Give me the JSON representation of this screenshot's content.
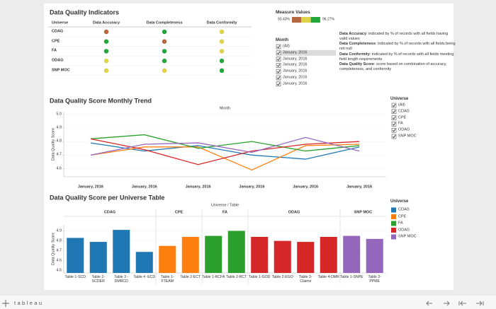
{
  "indicators": {
    "title": "Data Quality Indicators",
    "columns": [
      "Universe",
      "Data Accuracy",
      "Data Completeness",
      "Data Conformity"
    ],
    "rows": [
      {
        "universe": "CDAG",
        "colors": [
          "#b5673f",
          "#23a53c",
          "#ddd24a"
        ]
      },
      {
        "universe": "CPE",
        "colors": [
          "#23a53c",
          "#b5673f",
          "#ddd24a"
        ]
      },
      {
        "universe": "FA",
        "colors": [
          "#23a53c",
          "#23a53c",
          "#ddd24a"
        ]
      },
      {
        "universe": "ODAG",
        "colors": [
          "#ddd24a",
          "#23a53c",
          "#23a53c"
        ]
      },
      {
        "universe": "SNP MOC",
        "colors": [
          "#ddd24a",
          "#ddd24a",
          "#23a53c"
        ]
      }
    ]
  },
  "measure_values": {
    "title": "Measure Values",
    "colors": [
      "#b5673f",
      "#ddd24a",
      "#23a53c"
    ],
    "min_label": "93.43%",
    "max_label": "96.27%"
  },
  "month_filter": {
    "title": "Month",
    "options": [
      "(All)",
      "January, 2016",
      "January, 2016",
      "January, 2016",
      "January, 2016",
      "January, 2016",
      "January, 2016"
    ]
  },
  "definitions": [
    {
      "term": "Data Accuracy",
      "text": ": indicated by % of records with all fields having valid values"
    },
    {
      "term": "Data Completeness",
      "text": ": indicated by % of records with all fields being not null"
    },
    {
      "term": "Data Conformity",
      "text": ": indicated by % of records with all fields meeting field length requirements"
    },
    {
      "term": "Data Quality Score",
      "text": ": score based on combination of accuracy, completeness, and conformity"
    }
  ],
  "universe_filter": {
    "title": "Universe",
    "all": "(All)"
  },
  "chart_data": [
    {
      "type": "line",
      "title": "Data Quality Score Monthly Trend",
      "x_header": "Month",
      "y_label": "Data Quality Score",
      "categories": [
        "January, 2016",
        "January, 2016",
        "January, 2016",
        "January, 2016",
        "January, 2016",
        "January, 2016"
      ],
      "ylim": [
        4.54,
        5.02
      ],
      "yticks": [
        4.6,
        4.7,
        4.8,
        4.9,
        {
          "value": 5,
          "label": "5.0"
        }
      ],
      "series": [
        {
          "name": "CDAG",
          "color": "#1f77b4",
          "values": [
            4.79,
            4.73,
            4.77,
            4.7,
            4.67,
            4.76
          ]
        },
        {
          "name": "CPE",
          "color": "#ff7f0e",
          "values": [
            4.7,
            4.76,
            4.76,
            4.59,
            4.77,
            4.78
          ]
        },
        {
          "name": "FA",
          "color": "#2ca02c",
          "values": [
            4.82,
            4.85,
            4.75,
            4.8,
            4.73,
            4.77
          ]
        },
        {
          "name": "ODAG",
          "color": "#d62728",
          "values": [
            4.82,
            4.74,
            4.63,
            4.73,
            4.78,
            4.8
          ]
        },
        {
          "name": "SNP MOC",
          "color": "#9467bd",
          "values": [
            4.7,
            4.78,
            4.79,
            4.72,
            4.83,
            4.73
          ]
        }
      ]
    },
    {
      "type": "bar",
      "title": "Data Quality Score per Universe Table",
      "x_header": "Universe / Table",
      "y_label": "Data Quality Score",
      "groups": [
        "CDAG",
        "CDAG",
        "CDAG",
        "CDAG",
        "CPE",
        "CPE",
        "FA",
        "FA",
        "ODAG",
        "ODAG",
        "ODAG",
        "ODAG",
        "SNP MOC",
        "SNP MOC"
      ],
      "categories": [
        "Table 1-SCD",
        "Table 2-\nSCDER",
        "Table 3 -\nDMRCD",
        "Table 4 -ECD",
        "Table 1-\nFTEAM",
        "Table 2-ECT",
        "Table 1-RCFA",
        "Table 2-RCT",
        "Table 1-GOD",
        "Table 2-EGO",
        "Table 3-\nClaims",
        "Table 4-DMR",
        "Table 1-SNPE",
        "Table 2-\nPPME"
      ],
      "values": [
        4.83,
        4.79,
        4.91,
        4.69,
        4.75,
        4.84,
        4.85,
        4.9,
        4.84,
        4.8,
        4.79,
        4.84,
        4.85,
        4.82
      ],
      "ylim": [
        4.48,
        4.96
      ],
      "yticks": [
        4.5,
        4.6,
        4.7,
        4.8,
        4.9
      ],
      "legend": {
        "title": "Universe",
        "position": "right",
        "items": [
          {
            "name": "CDAG",
            "color": "#1f77b4"
          },
          {
            "name": "CPE",
            "color": "#ff7f0e"
          },
          {
            "name": "FA",
            "color": "#2ca02c"
          },
          {
            "name": "ODAG",
            "color": "#d62728"
          },
          {
            "name": "SNP MOC",
            "color": "#9467bd"
          }
        ]
      }
    }
  ],
  "footer": {
    "brand": "tableau"
  }
}
